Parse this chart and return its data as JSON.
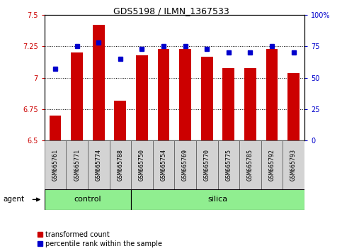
{
  "title": "GDS5198 / ILMN_1367533",
  "samples": [
    "GSM665761",
    "GSM665771",
    "GSM665774",
    "GSM665788",
    "GSM665750",
    "GSM665754",
    "GSM665769",
    "GSM665770",
    "GSM665775",
    "GSM665785",
    "GSM665792",
    "GSM665793"
  ],
  "bar_values": [
    6.7,
    7.2,
    7.42,
    6.82,
    7.18,
    7.23,
    7.23,
    7.17,
    7.08,
    7.08,
    7.23,
    7.04
  ],
  "percentile_values": [
    57,
    75,
    78,
    65,
    73,
    75,
    75,
    73,
    70,
    70,
    75,
    70
  ],
  "bar_color": "#cc0000",
  "dot_color": "#0000cc",
  "ylim_left": [
    6.5,
    7.5
  ],
  "ylim_right": [
    0,
    100
  ],
  "yticks_left": [
    6.5,
    6.75,
    7.0,
    7.25,
    7.5
  ],
  "yticks_right": [
    0,
    25,
    50,
    75,
    100
  ],
  "ytick_labels_left": [
    "6.5",
    "6.75",
    "7",
    "7.25",
    "7.5"
  ],
  "ytick_labels_right": [
    "0",
    "25",
    "50",
    "75",
    "100%"
  ],
  "grid_values": [
    6.75,
    7.0,
    7.25
  ],
  "control_count": 4,
  "silica_count": 8,
  "bar_bottom": 6.5,
  "bar_color_legend": "#cc0000",
  "dot_color_legend": "#0000cc",
  "legend_items": [
    "transformed count",
    "percentile rank within the sample"
  ],
  "gray_bg": "#d3d3d3",
  "green_bg": "#90ee90",
  "agent_label": "agent"
}
